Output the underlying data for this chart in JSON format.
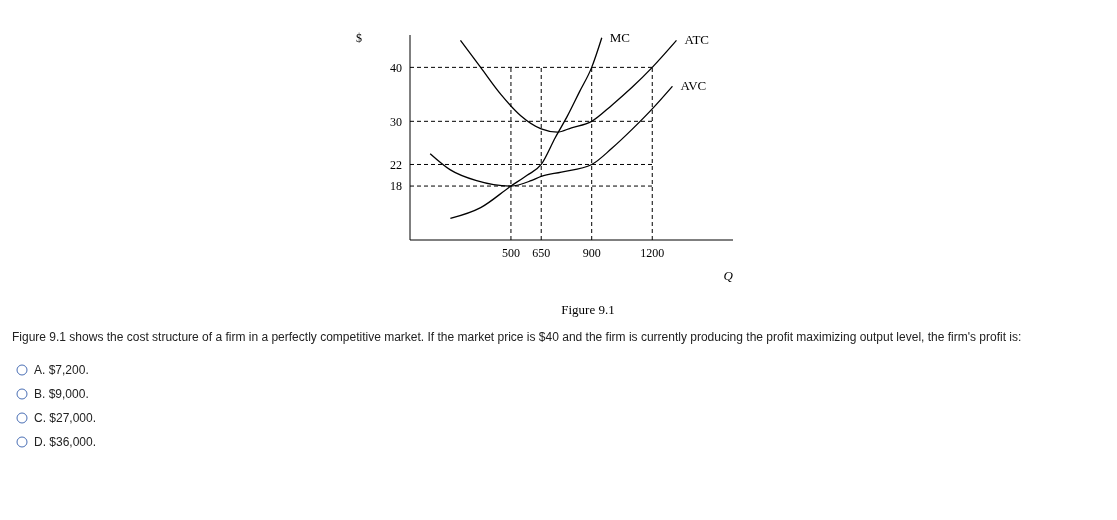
{
  "chart_data": {
    "type": "line",
    "title": "Figure 9.1",
    "xlabel": "Q",
    "ylabel": "$",
    "xlim": [
      0,
      1600
    ],
    "ylim": [
      8,
      46
    ],
    "xticks": [
      500,
      650,
      900,
      1200
    ],
    "yticks": [
      18,
      22,
      30,
      40
    ],
    "series": [
      {
        "name": "MC",
        "color": "#000000",
        "x": [
          200,
          350,
          500,
          580,
          650,
          720,
          780,
          840,
          900,
          950
        ],
        "values": [
          12,
          14,
          18,
          20,
          22,
          27,
          31,
          35.5,
          40,
          45.5
        ]
      },
      {
        "name": "ATC",
        "color": "#000000",
        "x": [
          250,
          350,
          450,
          550,
          650,
          730,
          800,
          900,
          1000,
          1100,
          1200,
          1320
        ],
        "values": [
          45,
          40,
          35,
          31,
          28.6,
          28,
          28.8,
          30,
          33,
          36.3,
          40,
          45
        ]
      },
      {
        "name": "AVC",
        "color": "#000000",
        "x": [
          100,
          200,
          330,
          500,
          600,
          650,
          750,
          900,
          1000,
          1100,
          1200,
          1300
        ],
        "values": [
          24,
          21,
          19,
          18,
          19,
          19.8,
          20.6,
          22,
          25,
          28.5,
          32.3,
          36.5
        ]
      }
    ],
    "ref_lines": [
      {
        "axis": "y",
        "value": 40,
        "color": "#000000",
        "line_style": "dashed"
      },
      {
        "axis": "y",
        "value": 30,
        "color": "#000000",
        "line_style": "dashed"
      },
      {
        "axis": "y",
        "value": 22,
        "color": "#000000",
        "line_style": "dashed"
      },
      {
        "axis": "y",
        "value": 18,
        "color": "#000000",
        "line_style": "dashed"
      },
      {
        "axis": "x",
        "value": 500,
        "color": "#000000",
        "line_style": "dashed"
      },
      {
        "axis": "x",
        "value": 650,
        "color": "#000000",
        "line_style": "dashed"
      },
      {
        "axis": "x",
        "value": 900,
        "color": "#000000",
        "line_style": "dashed"
      },
      {
        "axis": "x",
        "value": 1200,
        "color": "#000000",
        "line_style": "dashed"
      }
    ],
    "annotations": [
      "Figure 9.1 shows the cost structure of a firm in a perfectly competitive market.  If the market price is $40 and the firm is currently producing the profit maximizing output level, the firm's profit is:",
      "A.  $7,200.",
      "B.  $9,000.",
      "C.  $27,000.",
      "D.  $36,000."
    ]
  }
}
